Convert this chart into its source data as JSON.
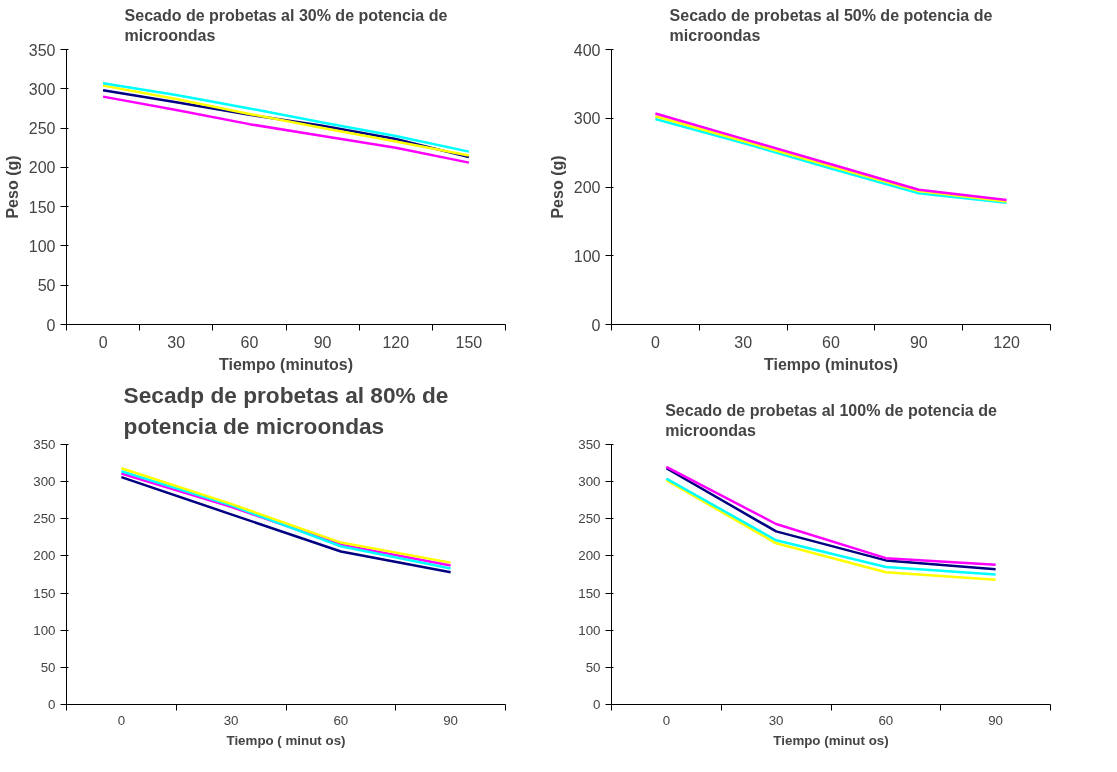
{
  "chart_data": [
    {
      "type": "line",
      "title": "Secado de probetas al 30% de potencia de microondas",
      "xlabel": "Tiempo (minutos)",
      "ylabel": "Peso (g)",
      "categories": [
        "0",
        "30",
        "60",
        "90",
        "120",
        "150"
      ],
      "ylim": [
        0,
        350
      ],
      "yticks": [
        0,
        50,
        100,
        150,
        200,
        250,
        300,
        350
      ],
      "grid": false,
      "series": [
        {
          "color": "#000080",
          "values": [
            298,
            283,
            267,
            253,
            236,
            213
          ]
        },
        {
          "color": "#ffff00",
          "values": [
            304,
            287,
            268,
            250,
            233,
            215
          ]
        },
        {
          "color": "#00ffff",
          "values": [
            307,
            292,
            275,
            257,
            240,
            220
          ]
        },
        {
          "color": "#ff00ff",
          "values": [
            290,
            273,
            255,
            240,
            225,
            206
          ]
        }
      ]
    },
    {
      "type": "line",
      "title": "Secado de probetas al 50% de potencia de microondas",
      "xlabel": "Tiempo (minutos)",
      "ylabel": "Peso (g)",
      "categories": [
        "0",
        "30",
        "60",
        "90",
        "120"
      ],
      "ylim": [
        0,
        400
      ],
      "yticks": [
        0,
        100,
        200,
        300,
        400
      ],
      "grid": false,
      "series": [
        {
          "color": "#00ffff",
          "values": [
            299,
            264,
            227,
            191,
            177
          ]
        },
        {
          "color": "#ffff00",
          "values": [
            303,
            267,
            230,
            194,
            179
          ]
        },
        {
          "color": "#ff00ff",
          "values": [
            307,
            270,
            233,
            196,
            181
          ]
        }
      ]
    },
    {
      "type": "line",
      "title": "Secadp de probetas al 80% de potencia de microondas",
      "xlabel": "Tiempo ( minut os)",
      "categories": [
        "0",
        "30",
        "60",
        "90"
      ],
      "ylim": [
        0,
        350
      ],
      "yticks": [
        0,
        50,
        100,
        150,
        200,
        250,
        300,
        350
      ],
      "grid": false,
      "series": [
        {
          "color": "#000080",
          "values": [
            306,
            256,
            206,
            178
          ]
        },
        {
          "color": "#ff00ff",
          "values": [
            311,
            266,
            215,
            187
          ]
        },
        {
          "color": "#00ffff",
          "values": [
            314,
            268,
            213,
            183
          ]
        },
        {
          "color": "#ffff00",
          "values": [
            318,
            270,
            218,
            191
          ]
        }
      ]
    },
    {
      "type": "line",
      "title": "Secado de probetas al 100% de potencia de microondas",
      "xlabel": "Tiempo (minut os)",
      "categories": [
        "0",
        "30",
        "60",
        "90"
      ],
      "ylim": [
        0,
        350
      ],
      "yticks": [
        0,
        50,
        100,
        150,
        200,
        250,
        300,
        350
      ],
      "grid": false,
      "series": [
        {
          "color": "#ffff00",
          "values": [
            302,
            217,
            178,
            168
          ]
        },
        {
          "color": "#00ffff",
          "values": [
            304,
            221,
            185,
            175
          ]
        },
        {
          "color": "#000080",
          "values": [
            318,
            233,
            194,
            182
          ]
        },
        {
          "color": "#ff00ff",
          "values": [
            320,
            243,
            197,
            188
          ]
        }
      ]
    }
  ]
}
